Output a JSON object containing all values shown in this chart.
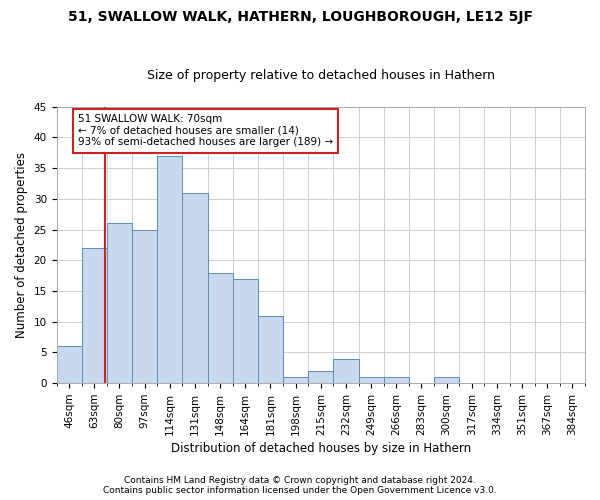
{
  "title1": "51, SWALLOW WALK, HATHERN, LOUGHBOROUGH, LE12 5JF",
  "title2": "Size of property relative to detached houses in Hathern",
  "xlabel": "Distribution of detached houses by size in Hathern",
  "ylabel": "Number of detached properties",
  "footnote1": "Contains HM Land Registry data © Crown copyright and database right 2024.",
  "footnote2": "Contains public sector information licensed under the Open Government Licence v3.0.",
  "bar_labels": [
    "46sqm",
    "63sqm",
    "80sqm",
    "97sqm",
    "114sqm",
    "131sqm",
    "148sqm",
    "164sqm",
    "181sqm",
    "198sqm",
    "215sqm",
    "232sqm",
    "249sqm",
    "266sqm",
    "283sqm",
    "300sqm",
    "317sqm",
    "334sqm",
    "351sqm",
    "367sqm",
    "384sqm"
  ],
  "bar_values": [
    6,
    22,
    26,
    25,
    37,
    31,
    18,
    17,
    11,
    1,
    2,
    4,
    1,
    1,
    0,
    1,
    0,
    0,
    0,
    0,
    0
  ],
  "bar_color": "#c8d9ef",
  "bar_edge_color": "#5b8db8",
  "grid_color": "#d0d0d0",
  "annotation_line1": "51 SWALLOW WALK: 70sqm",
  "annotation_line2": "← 7% of detached houses are smaller (14)",
  "annotation_line3": "93% of semi-detached houses are larger (189) →",
  "annotation_box_color": "#ffffff",
  "annotation_box_edge": "#cc2222",
  "vline_color": "#cc2222",
  "ylim": [
    0,
    45
  ],
  "yticks": [
    0,
    5,
    10,
    15,
    20,
    25,
    30,
    35,
    40,
    45
  ],
  "title1_fontsize": 10,
  "title2_fontsize": 9,
  "xlabel_fontsize": 8.5,
  "ylabel_fontsize": 8.5,
  "tick_fontsize": 7.5,
  "annot_fontsize": 7.5,
  "footnote_fontsize": 6.5
}
